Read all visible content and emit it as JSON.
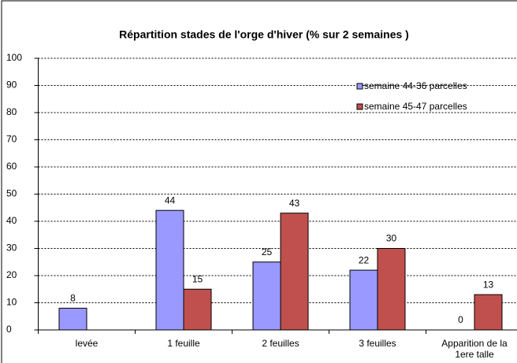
{
  "chart_data": {
    "type": "bar",
    "title": "Répartition stades de l'orge d'hiver (% sur 2 semaines )",
    "categories": [
      "levée",
      "1 feuille",
      "2 feuilles",
      "3 feuilles",
      "Apparition de la 1ere talle"
    ],
    "series": [
      {
        "name": "semaine 44-36 parcelles",
        "color": "#9999ff",
        "values": [
          8,
          44,
          25,
          22,
          0
        ]
      },
      {
        "name": "semaine 45-47 parcelles",
        "color": "#c0504d",
        "values": [
          null,
          15,
          43,
          30,
          13
        ]
      }
    ],
    "ylim": [
      0,
      100
    ],
    "yticks": [
      0,
      10,
      20,
      30,
      40,
      50,
      60,
      70,
      80,
      90,
      100
    ],
    "grid": true,
    "legend": "top-right"
  }
}
